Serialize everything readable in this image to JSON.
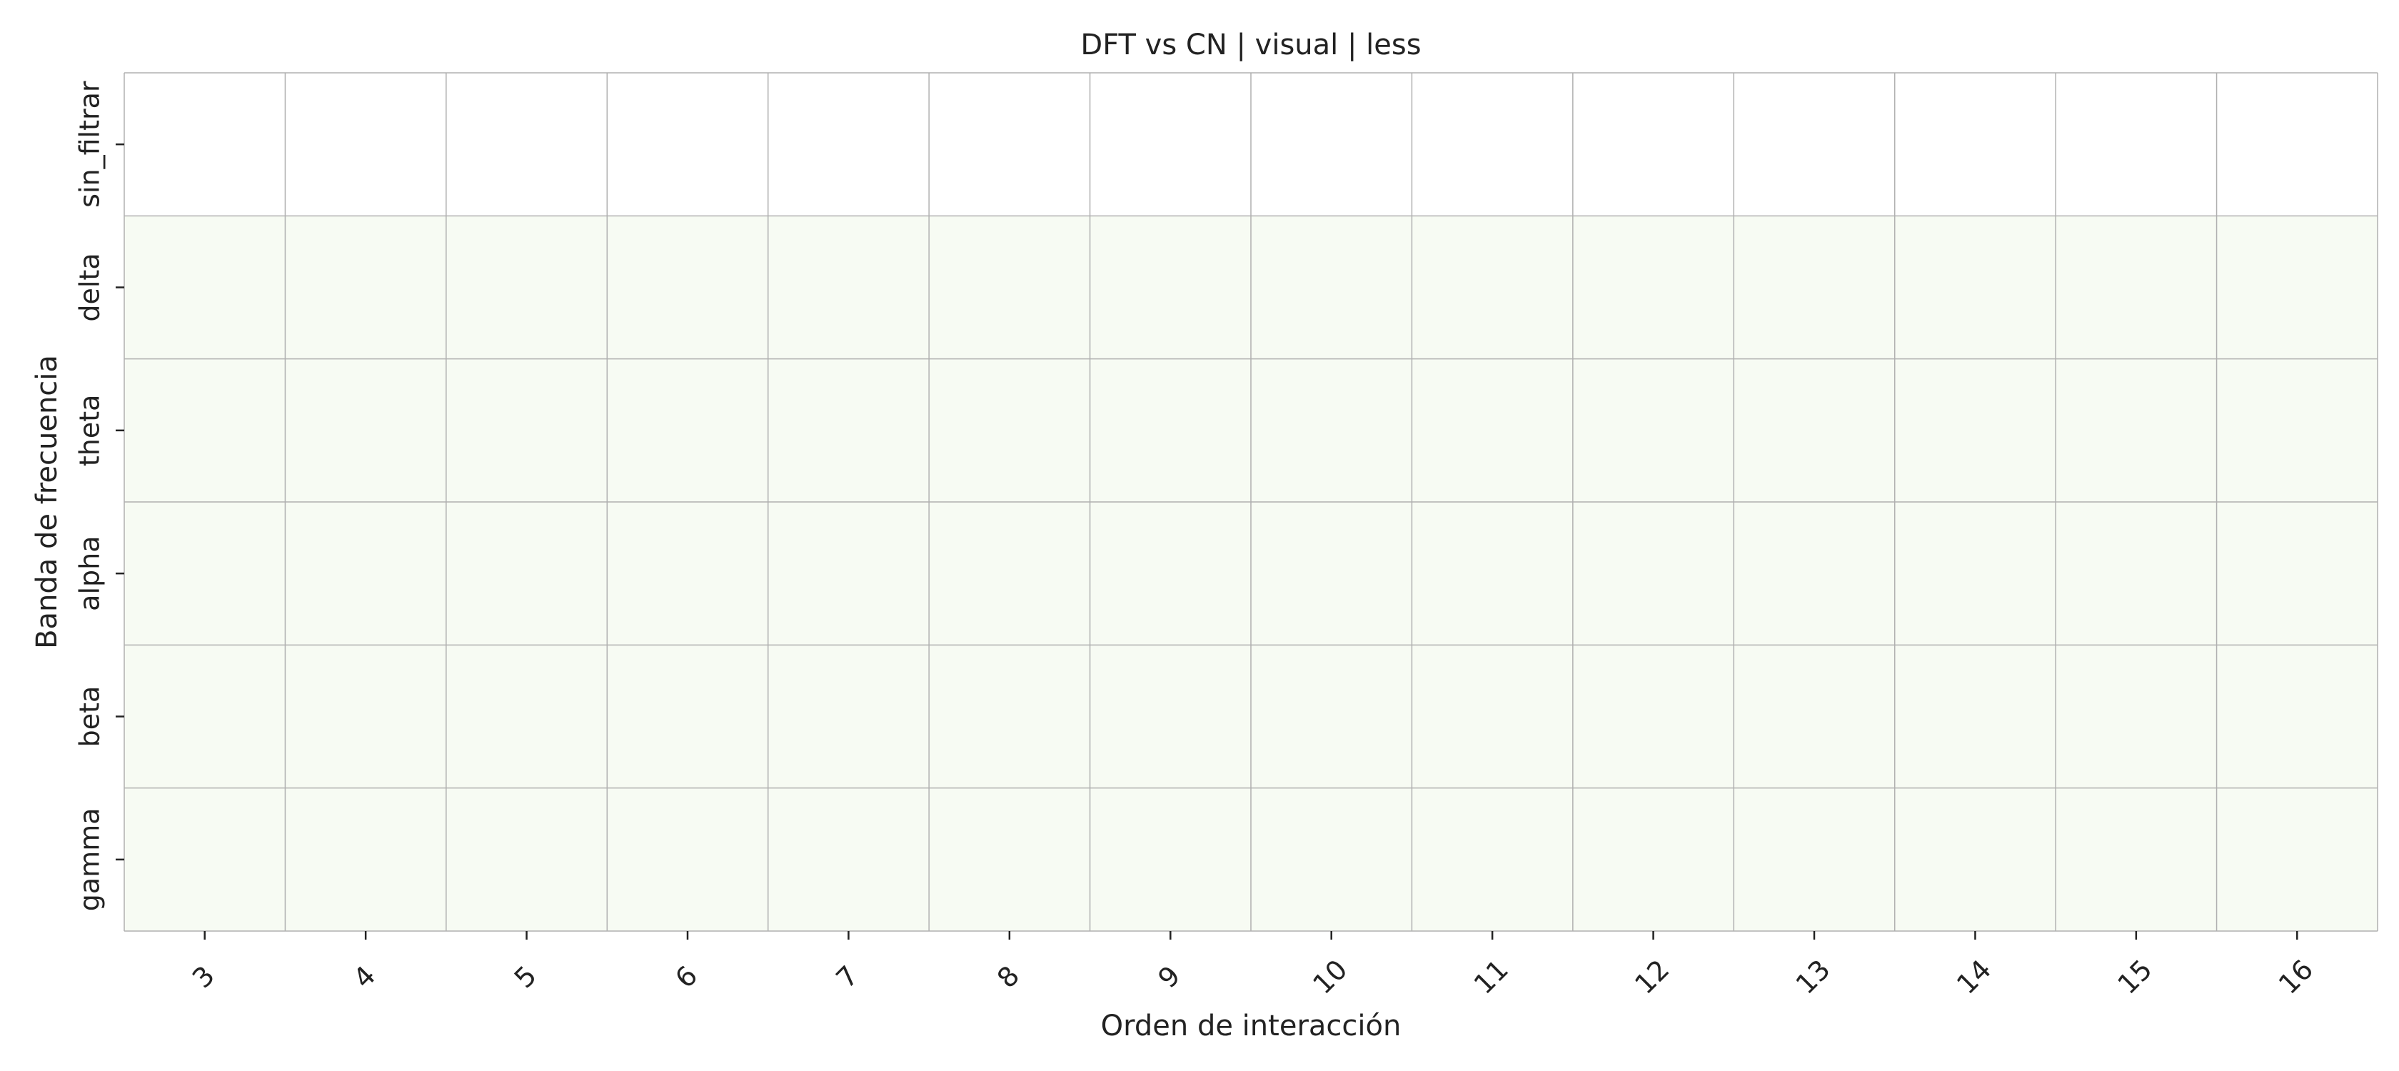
{
  "chart_data": {
    "type": "heatmap",
    "title": "DFT vs CN | visual | less",
    "xlabel": "Orden de interacción",
    "ylabel": "Banda de frecuencia",
    "x_categories": [
      "3",
      "4",
      "5",
      "6",
      "7",
      "8",
      "9",
      "10",
      "11",
      "12",
      "13",
      "14",
      "15",
      "16"
    ],
    "y_categories": [
      "sin_filtrar",
      "delta",
      "theta",
      "alpha",
      "beta",
      "gamma"
    ],
    "values": [
      [
        0,
        0,
        0,
        0,
        0,
        0,
        0,
        0,
        0,
        0,
        0,
        0,
        0,
        0
      ],
      [
        1,
        1,
        1,
        1,
        1,
        1,
        1,
        1,
        1,
        1,
        1,
        1,
        1,
        1
      ],
      [
        1,
        1,
        1,
        1,
        1,
        1,
        1,
        1,
        1,
        1,
        1,
        1,
        1,
        1
      ],
      [
        1,
        1,
        1,
        1,
        1,
        1,
        1,
        1,
        1,
        1,
        1,
        1,
        1,
        1
      ],
      [
        1,
        1,
        1,
        1,
        1,
        1,
        1,
        1,
        1,
        1,
        1,
        1,
        1,
        1
      ],
      [
        1,
        1,
        1,
        1,
        1,
        1,
        1,
        1,
        1,
        1,
        1,
        1,
        1,
        1
      ]
    ],
    "colormap": [
      "#ffffff",
      "#f7fbf3"
    ],
    "grid": true,
    "grid_color": "#b0b0b0",
    "colorbar": false
  }
}
